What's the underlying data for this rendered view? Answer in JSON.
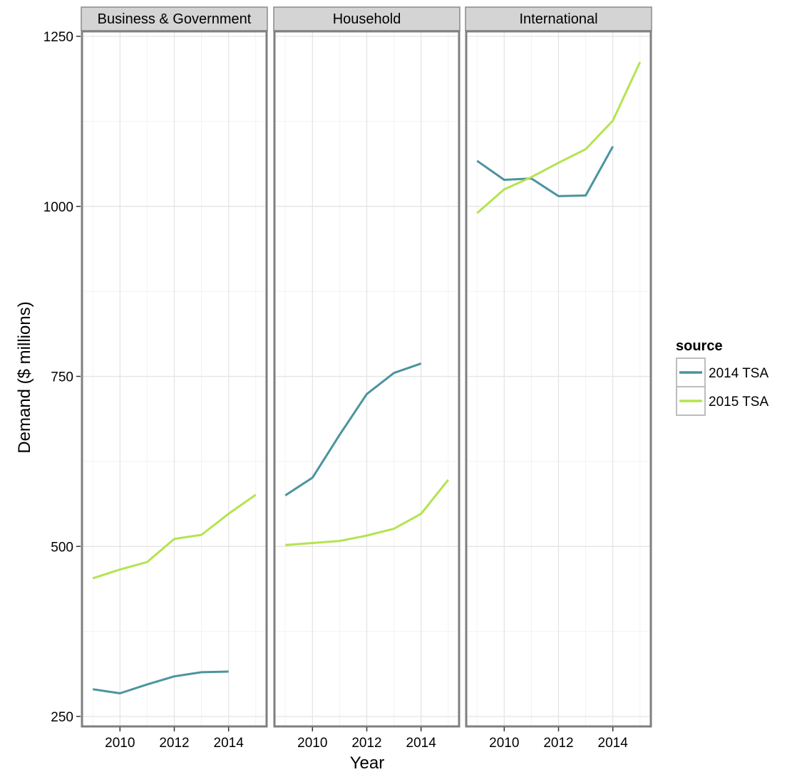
{
  "chart_data": {
    "type": "line",
    "xlabel": "Year",
    "ylabel": "Demand ($ millions)",
    "ylim": [
      240,
      1250
    ],
    "xlim": [
      2008.6,
      2015.4
    ],
    "y_ticks": [
      250,
      500,
      750,
      1000,
      1250
    ],
    "x_ticks": [
      2010,
      2012,
      2014
    ],
    "grid": true,
    "legend": {
      "title": "source",
      "placement": "right"
    },
    "colors": {
      "2014 TSA": "#4a949e",
      "2015 TSA": "#b5e34f"
    },
    "panels": [
      {
        "label": "Business & Government",
        "series": [
          {
            "name": "2014 TSA",
            "x": [
              2009,
              2010,
              2011,
              2012,
              2013,
              2014
            ],
            "y": [
              290,
              284,
              297,
              309,
              315,
              316
            ]
          },
          {
            "name": "2015 TSA",
            "x": [
              2009,
              2010,
              2011,
              2012,
              2013,
              2014,
              2015
            ],
            "y": [
              453,
              466,
              477,
              511,
              517,
              548,
              576
            ]
          }
        ]
      },
      {
        "label": "Household",
        "series": [
          {
            "name": "2014 TSA",
            "x": [
              2009,
              2010,
              2011,
              2012,
              2013,
              2014
            ],
            "y": [
              575,
              601,
              664,
              724,
              755,
              769
            ]
          },
          {
            "name": "2015 TSA",
            "x": [
              2009,
              2010,
              2011,
              2012,
              2013,
              2014,
              2015
            ],
            "y": [
              502,
              505,
              508,
              516,
              526,
              548,
              598
            ]
          }
        ]
      },
      {
        "label": "International",
        "series": [
          {
            "name": "2014 TSA",
            "x": [
              2009,
              2010,
              2011,
              2012,
              2013,
              2014
            ],
            "y": [
              1067,
              1039,
              1041,
              1015,
              1016,
              1088
            ]
          },
          {
            "name": "2015 TSA",
            "x": [
              2009,
              2010,
              2011,
              2012,
              2013,
              2014,
              2015
            ],
            "y": [
              990,
              1025,
              1043,
              1064,
              1084,
              1126,
              1212
            ]
          }
        ]
      }
    ]
  }
}
